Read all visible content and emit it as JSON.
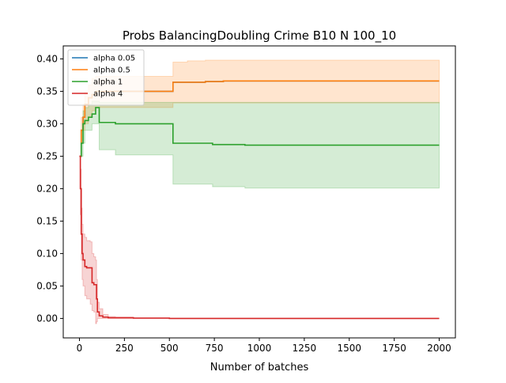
{
  "chart_data": {
    "type": "line",
    "title": "Probs BalancingDoubling Crime B10 N 100_10",
    "xlabel": "Number of batches",
    "ylabel": "",
    "xlim": [
      -90,
      2090
    ],
    "ylim": [
      -0.03,
      0.42
    ],
    "xticks": [
      0,
      250,
      500,
      750,
      1000,
      1250,
      1500,
      1750,
      2000
    ],
    "yticks": [
      0.0,
      0.05,
      0.1,
      0.15,
      0.2,
      0.25,
      0.3,
      0.35,
      0.4
    ],
    "ytick_labels": [
      "0.00",
      "0.05",
      "0.10",
      "0.15",
      "0.20",
      "0.25",
      "0.30",
      "0.35",
      "0.40"
    ],
    "grid": false,
    "legend_position": "top-left",
    "series": [
      {
        "name": "alpha 0.05",
        "color": "#1f77b4",
        "x": [
          0,
          10,
          20,
          30,
          50,
          70,
          90,
          110,
          200,
          300,
          400,
          520,
          600,
          700,
          800,
          900,
          1000,
          1500,
          2000
        ],
        "values": [
          0.25,
          0.29,
          0.31,
          0.33,
          0.34,
          0.345,
          0.35,
          0.35,
          0.35,
          0.35,
          0.35,
          0.364,
          0.364,
          0.365,
          0.366,
          0.366,
          0.366,
          0.366,
          0.366
        ]
      },
      {
        "name": "alpha 0.5",
        "color": "#ff7f0e",
        "x": [
          0,
          10,
          20,
          30,
          50,
          70,
          90,
          110,
          200,
          300,
          400,
          520,
          600,
          700,
          800,
          900,
          1000,
          1500,
          2000
        ],
        "values": [
          0.25,
          0.29,
          0.31,
          0.33,
          0.34,
          0.345,
          0.35,
          0.35,
          0.35,
          0.35,
          0.35,
          0.364,
          0.364,
          0.365,
          0.366,
          0.366,
          0.366,
          0.366,
          0.366
        ],
        "band_lower": [
          0.25,
          0.27,
          0.29,
          0.3,
          0.31,
          0.32,
          0.325,
          0.325,
          0.325,
          0.325,
          0.325,
          0.332,
          0.332,
          0.332,
          0.332,
          0.332,
          0.332,
          0.332,
          0.332
        ],
        "band_upper": [
          0.25,
          0.31,
          0.33,
          0.35,
          0.36,
          0.37,
          0.373,
          0.373,
          0.373,
          0.373,
          0.373,
          0.395,
          0.397,
          0.398,
          0.398,
          0.398,
          0.398,
          0.398,
          0.398
        ]
      },
      {
        "name": "alpha 1",
        "color": "#2ca02c",
        "x": [
          0,
          10,
          20,
          30,
          50,
          70,
          90,
          110,
          200,
          300,
          400,
          510,
          520,
          700,
          740,
          900,
          920,
          1500,
          2000
        ],
        "values": [
          0.25,
          0.27,
          0.3,
          0.305,
          0.31,
          0.315,
          0.325,
          0.302,
          0.3,
          0.3,
          0.3,
          0.3,
          0.27,
          0.27,
          0.268,
          0.268,
          0.267,
          0.267,
          0.267
        ],
        "band_lower": [
          0.25,
          0.25,
          0.27,
          0.29,
          0.29,
          0.3,
          0.3,
          0.26,
          0.252,
          0.252,
          0.252,
          0.252,
          0.207,
          0.207,
          0.203,
          0.203,
          0.201,
          0.201,
          0.201
        ],
        "band_upper": [
          0.25,
          0.29,
          0.32,
          0.325,
          0.33,
          0.335,
          0.335,
          0.333,
          0.333,
          0.333,
          0.333,
          0.333,
          0.333,
          0.333,
          0.333,
          0.333,
          0.333,
          0.333,
          0.333
        ]
      },
      {
        "name": "alpha 4",
        "color": "#d62728",
        "x": [
          0,
          5,
          10,
          15,
          20,
          30,
          40,
          60,
          70,
          80,
          90,
          95,
          100,
          110,
          130,
          160,
          200,
          300,
          500,
          1000,
          2000
        ],
        "values": [
          0.25,
          0.2,
          0.13,
          0.1,
          0.09,
          0.08,
          0.078,
          0.078,
          0.055,
          0.052,
          0.052,
          0.03,
          0.01,
          0.004,
          0.002,
          0.001,
          0.001,
          0.0005,
          0.0,
          0.0,
          0.0
        ],
        "band_lower": [
          0.25,
          0.16,
          0.09,
          0.06,
          0.05,
          0.035,
          0.03,
          0.022,
          0.012,
          0.01,
          -0.008,
          -0.005,
          0.0,
          0.0,
          0.0,
          0.0,
          0.0,
          0.0,
          0.0,
          0.0,
          0.0
        ],
        "band_upper": [
          0.25,
          0.23,
          0.17,
          0.145,
          0.13,
          0.125,
          0.12,
          0.118,
          0.1,
          0.095,
          0.09,
          0.06,
          0.025,
          0.015,
          0.006,
          0.003,
          0.002,
          0.001,
          0.0,
          0.0,
          0.0
        ]
      }
    ]
  }
}
